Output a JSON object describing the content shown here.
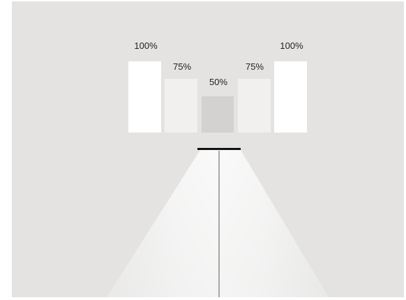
{
  "diagram": {
    "panels": [
      {
        "label": "100%",
        "level": 1.0,
        "fill": "#ffffff"
      },
      {
        "label": "75%",
        "level": 0.75,
        "fill": "#f1f0ef"
      },
      {
        "label": "50%",
        "level": 0.5,
        "fill": "#d3d2d1"
      },
      {
        "label": "75%",
        "level": 0.75,
        "fill": "#f1f0ef"
      },
      {
        "label": "100%",
        "level": 1.0,
        "fill": "#ffffff"
      }
    ],
    "colors": {
      "background": "#e4e3e2",
      "fixture": "#111111",
      "beam_core": "#ffffff",
      "beam_center_line": "#8f8e8d"
    }
  }
}
